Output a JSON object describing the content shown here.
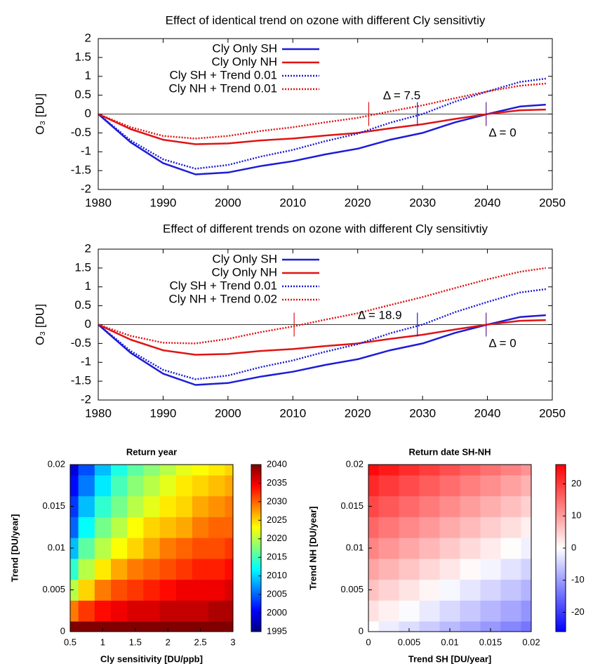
{
  "chart_data": [
    {
      "type": "line",
      "title": "Effect of identical trend on ozone with different Cly sensitivtiy",
      "y_label": "O₃ [DU]",
      "x": [
        1980,
        1985,
        1990,
        1995,
        2000,
        2005,
        2010,
        2015,
        2020,
        2025,
        2030,
        2035,
        2040,
        2045,
        2049
      ],
      "series": [
        {
          "name": "Cly Only SH",
          "color": "#1c1cd8",
          "dotted": false,
          "values": [
            0,
            -0.75,
            -1.3,
            -1.6,
            -1.55,
            -1.38,
            -1.25,
            -1.07,
            -0.92,
            -0.68,
            -0.5,
            -0.22,
            0,
            0.2,
            0.25
          ]
        },
        {
          "name": "Cly Only NH",
          "color": "#e01414",
          "dotted": false,
          "values": [
            0,
            -0.4,
            -0.68,
            -0.8,
            -0.78,
            -0.7,
            -0.65,
            -0.57,
            -0.5,
            -0.38,
            -0.27,
            -0.13,
            0,
            0.1,
            0.12
          ]
        },
        {
          "name": "Cly SH + Trend 0.01",
          "color": "#1c1cd8",
          "dotted": true,
          "values": [
            0,
            -0.7,
            -1.2,
            -1.45,
            -1.35,
            -1.13,
            -0.95,
            -0.72,
            -0.52,
            -0.23,
            0,
            0.33,
            0.6,
            0.85,
            0.94
          ]
        },
        {
          "name": "Cly NH + Trend 0.01",
          "color": "#e01414",
          "dotted": true,
          "values": [
            0,
            -0.35,
            -0.58,
            -0.65,
            -0.58,
            -0.45,
            -0.35,
            -0.22,
            -0.1,
            0.07,
            0.23,
            0.42,
            0.6,
            0.75,
            0.81
          ]
        }
      ],
      "markers": [
        {
          "x": 2021.7,
          "color": "#e01414"
        },
        {
          "x": 2029.2,
          "color": "#1c1cd8"
        },
        {
          "x": 2039.8,
          "color": "#6a1a8a"
        }
      ],
      "annotations": [
        {
          "text": "Δ = 7.5",
          "x": 2023.9,
          "y": 0.47
        },
        {
          "text": "Δ = 0",
          "x": 2040.2,
          "y": -0.51
        }
      ],
      "xlim": [
        1980,
        2050
      ],
      "xticks": [
        1980,
        1990,
        2000,
        2010,
        2020,
        2030,
        2040,
        2050
      ],
      "ylim": [
        -2,
        2
      ],
      "yticks": [
        -2,
        -1.5,
        -1,
        -0.5,
        0,
        0.5,
        1,
        1.5,
        2
      ]
    },
    {
      "type": "line",
      "title": "Effect of different trends on ozone with different Cly sensitivtiy",
      "y_label": "O₃ [DU]",
      "x": [
        1980,
        1985,
        1990,
        1995,
        2000,
        2005,
        2010,
        2015,
        2020,
        2025,
        2030,
        2035,
        2040,
        2045,
        2049
      ],
      "series": [
        {
          "name": "Cly Only SH",
          "color": "#1c1cd8",
          "dotted": false,
          "values": [
            0,
            -0.75,
            -1.3,
            -1.6,
            -1.55,
            -1.38,
            -1.25,
            -1.07,
            -0.92,
            -0.68,
            -0.5,
            -0.22,
            0,
            0.2,
            0.25
          ]
        },
        {
          "name": "Cly Only NH",
          "color": "#e01414",
          "dotted": false,
          "values": [
            0,
            -0.4,
            -0.68,
            -0.8,
            -0.78,
            -0.7,
            -0.65,
            -0.57,
            -0.5,
            -0.38,
            -0.27,
            -0.13,
            0,
            0.1,
            0.12
          ]
        },
        {
          "name": "Cly SH + Trend 0.01",
          "color": "#1c1cd8",
          "dotted": true,
          "values": [
            0,
            -0.7,
            -1.2,
            -1.45,
            -1.35,
            -1.13,
            -0.95,
            -0.72,
            -0.52,
            -0.23,
            0,
            0.33,
            0.6,
            0.85,
            0.94
          ]
        },
        {
          "name": "Cly NH + Trend 0.02",
          "color": "#e01414",
          "dotted": true,
          "values": [
            0,
            -0.3,
            -0.48,
            -0.5,
            -0.38,
            -0.2,
            -0.05,
            0.13,
            0.3,
            0.52,
            0.73,
            0.97,
            1.2,
            1.4,
            1.5
          ]
        }
      ],
      "markers": [
        {
          "x": 2010.2,
          "color": "#e01414"
        },
        {
          "x": 2029.2,
          "color": "#1c1cd8"
        },
        {
          "x": 2039.8,
          "color": "#6a1a8a"
        }
      ],
      "annotations": [
        {
          "text": "Δ = 18.9",
          "x": 2020,
          "y": 0.23
        },
        {
          "text": "Δ = 0",
          "x": 2040.2,
          "y": -0.51
        }
      ],
      "xlim": [
        1980,
        2050
      ],
      "xticks": [
        1980,
        1990,
        2000,
        2010,
        2020,
        2030,
        2040,
        2050
      ],
      "ylim": [
        -2,
        2
      ],
      "yticks": [
        -2,
        -1.5,
        -1,
        -0.5,
        0,
        0.5,
        1,
        1.5,
        2
      ]
    },
    {
      "type": "heatmap",
      "title": "Return year",
      "x_label": "Cly sensitivity [DU/ppb]",
      "y_label": "Trend [DU/year]",
      "x": [
        0.5,
        0.75,
        1,
        1.25,
        1.5,
        1.75,
        2,
        2.25,
        2.5,
        2.75,
        3
      ],
      "y": [
        0,
        0.0025,
        0.005,
        0.0075,
        0.01,
        0.0125,
        0.015,
        0.0175,
        0.02
      ],
      "z": [
        [
          2040,
          2040,
          2040,
          2040,
          2040,
          2040,
          2040,
          2040,
          2040,
          2040,
          2040
        ],
        [
          2029,
          2032,
          2034,
          2035,
          2036,
          2036,
          2037,
          2037,
          2037,
          2038,
          2038
        ],
        [
          2020,
          2025,
          2029,
          2031,
          2032,
          2033,
          2034,
          2035,
          2035,
          2035,
          2036
        ],
        [
          2014,
          2020,
          2024,
          2027,
          2029,
          2030,
          2031,
          2032,
          2033,
          2033,
          2034
        ],
        [
          2009,
          2016,
          2020,
          2023,
          2025,
          2027,
          2029,
          2030,
          2031,
          2031,
          2032
        ],
        [
          2005,
          2012,
          2017,
          2020,
          2023,
          2025,
          2026,
          2027,
          2029,
          2030,
          2030
        ],
        [
          2003,
          2009,
          2014,
          2017,
          2020,
          2022,
          2024,
          2025,
          2027,
          2028,
          2029
        ],
        [
          2001,
          2006,
          2011,
          2015,
          2018,
          2020,
          2022,
          2024,
          2025,
          2026,
          2027
        ],
        [
          1999,
          2004,
          2009,
          2013,
          2016,
          2018,
          2020,
          2022,
          2023,
          2024,
          2025
        ]
      ],
      "xlim": [
        0.5,
        3
      ],
      "xticks": [
        0.5,
        1,
        1.5,
        2,
        2.5,
        3
      ],
      "ylim": [
        0,
        0.02
      ],
      "yticks": [
        0,
        0.005,
        0.01,
        0.015,
        0.02
      ],
      "zlim": [
        1995,
        2040
      ],
      "zticks": [
        1995,
        2000,
        2005,
        2010,
        2015,
        2020,
        2025,
        2030,
        2035,
        2040
      ],
      "colormap": [
        "#000080",
        "#0000ff",
        "#0080ff",
        "#00ffff",
        "#80ff80",
        "#ffff00",
        "#ff8000",
        "#ff0000",
        "#800000"
      ]
    },
    {
      "type": "heatmap",
      "title": "Return date SH-NH",
      "x_label": "Trend SH [DU/year]",
      "y_label": "Trend NH [DU/year]",
      "x": [
        0,
        0.0025,
        0.005,
        0.0075,
        0.01,
        0.0125,
        0.015,
        0.0175,
        0.02
      ],
      "y": [
        0,
        0.0025,
        0.005,
        0.0075,
        0.01,
        0.0125,
        0.015,
        0.0175,
        0.02
      ],
      "z": [
        [
          0,
          -1.8,
          -3.5,
          -5.3,
          -7,
          -8.8,
          -10.5,
          -12.3,
          -14
        ],
        [
          3.1,
          1.4,
          -0.4,
          -2.1,
          -3.9,
          -5.6,
          -7.4,
          -9.1,
          -10.9
        ],
        [
          6.3,
          4.5,
          2.8,
          1,
          -0.8,
          -2.5,
          -4.3,
          -6,
          -7.8
        ],
        [
          9.4,
          7.6,
          5.9,
          4.1,
          2.4,
          0.6,
          -1.1,
          -2.9,
          -4.6
        ],
        [
          12.5,
          10.8,
          9,
          7.3,
          5.5,
          3.8,
          2,
          0.3,
          -1.5
        ],
        [
          15.6,
          13.9,
          12.1,
          10.4,
          8.6,
          6.9,
          5.1,
          3.4,
          1.6
        ],
        [
          18.8,
          17,
          15.3,
          13.5,
          11.8,
          10,
          8.3,
          6.5,
          4.8
        ],
        [
          21.9,
          20.1,
          18.4,
          16.6,
          14.9,
          13.1,
          11.4,
          9.6,
          7.9
        ],
        [
          25,
          23.3,
          21.5,
          19.8,
          18,
          16.3,
          14.5,
          12.8,
          11
        ]
      ],
      "xlim": [
        0,
        0.02
      ],
      "xticks": [
        0,
        0.005,
        0.01,
        0.015,
        0.02
      ],
      "ylim": [
        0,
        0.02
      ],
      "yticks": [
        0,
        0.005,
        0.01,
        0.015,
        0.02
      ],
      "zlim": [
        -26,
        26
      ],
      "zticks": [
        -20,
        -10,
        0,
        10,
        20
      ],
      "colormap": [
        "#0000ff",
        "#ffffff",
        "#ff0000"
      ]
    }
  ]
}
